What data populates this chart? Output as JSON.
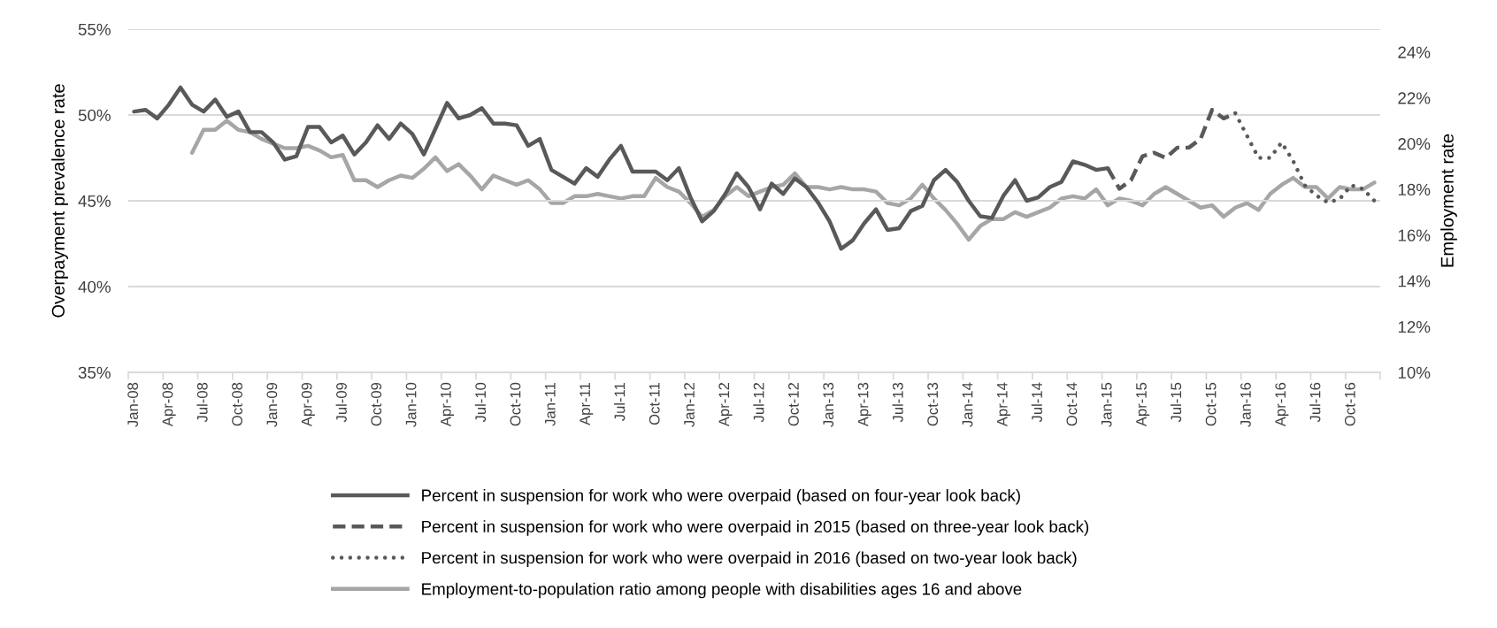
{
  "chart_data": {
    "type": "line",
    "ylabel": "Overpayment prevalence rate",
    "y2label": "Employment rate",
    "categories": [
      "Jan-08",
      null,
      null,
      "Apr-08",
      null,
      null,
      "Jul-08",
      null,
      null,
      "Oct-08",
      null,
      null,
      "Jan-09",
      null,
      null,
      "Apr-09",
      null,
      null,
      "Jul-09",
      null,
      null,
      "Oct-09",
      null,
      null,
      "Jan-10",
      null,
      null,
      "Apr-10",
      null,
      null,
      "Jul-10",
      null,
      null,
      "Oct-10",
      null,
      null,
      "Jan-11",
      null,
      null,
      "Apr-11",
      null,
      null,
      "Jul-11",
      null,
      null,
      "Oct-11",
      null,
      null,
      "Jan-12",
      null,
      null,
      "Apr-12",
      null,
      null,
      "Jul-12",
      null,
      null,
      "Oct-12",
      null,
      null,
      "Jan-13",
      null,
      null,
      "Apr-13",
      null,
      null,
      "Jul-13",
      null,
      null,
      "Oct-13",
      null,
      null,
      "Jan-14",
      null,
      null,
      "Apr-14",
      null,
      null,
      "Jul-14",
      null,
      null,
      "Oct-14",
      null,
      null,
      "Jan-15",
      null,
      null,
      "Apr-15",
      null,
      null,
      "Jul-15",
      null,
      null,
      "Oct-15",
      null,
      null,
      "Jan-16",
      null,
      null,
      "Apr-16",
      null,
      null,
      "Jul-16",
      null,
      null,
      "Oct-16",
      null,
      null
    ],
    "ylim": [
      35,
      55
    ],
    "yticks": [
      {
        "value": 35,
        "label": "35%"
      },
      {
        "value": 40,
        "label": "40%"
      },
      {
        "value": 45,
        "label": "45%"
      },
      {
        "value": 50,
        "label": "50%"
      },
      {
        "value": 55,
        "label": "55%"
      }
    ],
    "y2lim": [
      10,
      25
    ],
    "y2ticks": [
      {
        "value": 10,
        "label": "10%"
      },
      {
        "value": 12,
        "label": "12%"
      },
      {
        "value": 14,
        "label": "14%"
      },
      {
        "value": 16,
        "label": "16%"
      },
      {
        "value": 18,
        "label": "18%"
      },
      {
        "value": 20,
        "label": "20%"
      },
      {
        "value": 22,
        "label": "22%"
      },
      {
        "value": 24,
        "label": "24%"
      }
    ],
    "grid": "y",
    "legend": "bottom",
    "series": [
      {
        "name": "Percent in suspension for work who were overpaid (based on four-year look back)",
        "color": "#595959",
        "line_style": "solid",
        "values": [
          50.2,
          50.3,
          49.8,
          50.6,
          51.6,
          50.6,
          50.2,
          50.9,
          49.9,
          50.2,
          49.0,
          49.0,
          48.4,
          47.4,
          47.6,
          49.3,
          49.3,
          48.4,
          48.8,
          47.7,
          48.4,
          49.4,
          48.6,
          49.5,
          48.9,
          47.7,
          49.2,
          50.7,
          49.8,
          50.0,
          50.4,
          49.5,
          49.5,
          49.4,
          48.2,
          48.6,
          46.8,
          46.4,
          46.0,
          46.9,
          46.4,
          47.4,
          48.2,
          46.7,
          46.7,
          46.7,
          46.2,
          46.9,
          45.2,
          43.8,
          44.4,
          45.4,
          46.6,
          45.8,
          44.5,
          46.0,
          45.4,
          46.3,
          45.8,
          44.9,
          43.8,
          42.2,
          42.7,
          43.7,
          44.5,
          43.3,
          43.4,
          44.4,
          44.7,
          46.2,
          46.8,
          46.1,
          45.0,
          44.1,
          44.0,
          45.3,
          46.2,
          45.0,
          45.2,
          45.8,
          46.1,
          47.3,
          47.1,
          46.8,
          46.9,
          null,
          null,
          null,
          null,
          null,
          null,
          null,
          null,
          null,
          null,
          null,
          null,
          null,
          null,
          null,
          null,
          null,
          null,
          null,
          null,
          null,
          null,
          null
        ]
      },
      {
        "name": "Percent in suspension for work who were overpaid in 2015 (based on three-year look back)",
        "color": "#595959",
        "line_style": "dashed",
        "values": [
          null,
          null,
          null,
          null,
          null,
          null,
          null,
          null,
          null,
          null,
          null,
          null,
          null,
          null,
          null,
          null,
          null,
          null,
          null,
          null,
          null,
          null,
          null,
          null,
          null,
          null,
          null,
          null,
          null,
          null,
          null,
          null,
          null,
          null,
          null,
          null,
          null,
          null,
          null,
          null,
          null,
          null,
          null,
          null,
          null,
          null,
          null,
          null,
          null,
          null,
          null,
          null,
          null,
          null,
          null,
          null,
          null,
          null,
          null,
          null,
          null,
          null,
          null,
          null,
          null,
          null,
          null,
          null,
          null,
          null,
          null,
          null,
          null,
          null,
          null,
          null,
          null,
          null,
          null,
          null,
          null,
          null,
          null,
          null,
          46.9,
          45.7,
          46.2,
          47.6,
          47.8,
          47.5,
          48.1,
          48.1,
          48.6,
          50.3,
          49.8,
          50.1,
          null,
          null,
          null,
          null,
          null,
          null,
          null,
          null,
          null,
          null,
          null,
          null
        ]
      },
      {
        "name": "Percent in suspension for work who were overpaid in 2016 (based on two-year look back)",
        "color": "#595959",
        "line_style": "dotted",
        "values": [
          null,
          null,
          null,
          null,
          null,
          null,
          null,
          null,
          null,
          null,
          null,
          null,
          null,
          null,
          null,
          null,
          null,
          null,
          null,
          null,
          null,
          null,
          null,
          null,
          null,
          null,
          null,
          null,
          null,
          null,
          null,
          null,
          null,
          null,
          null,
          null,
          null,
          null,
          null,
          null,
          null,
          null,
          null,
          null,
          null,
          null,
          null,
          null,
          null,
          null,
          null,
          null,
          null,
          null,
          null,
          null,
          null,
          null,
          null,
          null,
          null,
          null,
          null,
          null,
          null,
          null,
          null,
          null,
          null,
          null,
          null,
          null,
          null,
          null,
          null,
          null,
          null,
          null,
          null,
          null,
          null,
          null,
          null,
          null,
          null,
          null,
          null,
          null,
          null,
          null,
          null,
          null,
          null,
          null,
          null,
          50.1,
          48.8,
          47.5,
          47.5,
          48.4,
          47.3,
          45.9,
          45.3,
          44.9,
          45.1,
          45.9,
          45.7,
          45.0
        ]
      },
      {
        "name": "Employment-to-population ratio among people with disabilities ages 16 and above",
        "color": "#a6a6a6",
        "line_style": "solid",
        "axis": "y2",
        "values": [
          null,
          null,
          null,
          null,
          null,
          19.6,
          20.6,
          20.6,
          21.0,
          20.6,
          20.5,
          20.2,
          20.0,
          19.8,
          19.8,
          19.9,
          19.7,
          19.4,
          19.5,
          18.4,
          18.4,
          18.1,
          18.4,
          18.6,
          18.5,
          18.9,
          19.4,
          18.8,
          19.1,
          18.6,
          18.0,
          18.6,
          18.4,
          18.2,
          18.4,
          18.0,
          17.4,
          17.4,
          17.7,
          17.7,
          17.8,
          17.7,
          17.6,
          17.7,
          17.7,
          18.5,
          18.1,
          17.9,
          17.4,
          16.8,
          17.1,
          17.7,
          18.1,
          17.7,
          17.9,
          18.1,
          18.2,
          18.7,
          18.1,
          18.1,
          18.0,
          18.1,
          18.0,
          18.0,
          17.9,
          17.4,
          17.3,
          17.6,
          18.2,
          17.6,
          17.1,
          16.5,
          15.8,
          16.4,
          16.7,
          16.7,
          17.0,
          16.8,
          17.0,
          17.2,
          17.6,
          17.7,
          17.6,
          18.0,
          17.3,
          17.6,
          17.5,
          17.3,
          17.8,
          18.1,
          17.8,
          17.5,
          17.2,
          17.3,
          16.8,
          17.2,
          17.4,
          17.1,
          17.8,
          18.2,
          18.5,
          18.1,
          18.1,
          17.6,
          18.1,
          18.0,
          18.0,
          18.3
        ]
      }
    ]
  }
}
